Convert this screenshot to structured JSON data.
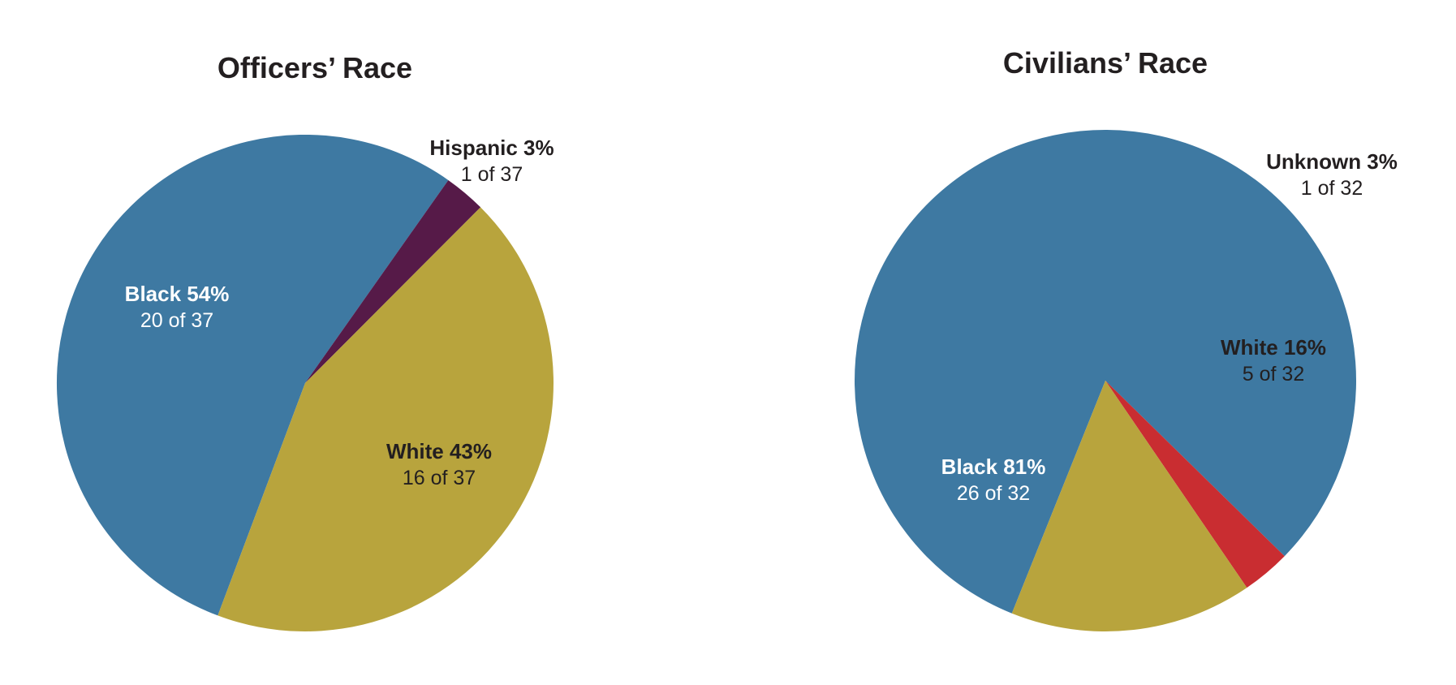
{
  "chart_data": [
    {
      "type": "pie",
      "title": "Officers’ Race",
      "slices": [
        {
          "label": "Black",
          "pct_label": "Black 54%",
          "count_label": "20 of 37",
          "value": 20,
          "color": "#3e79a2",
          "label_color": "#ffffff",
          "label_placement": "inside"
        },
        {
          "label": "Hispanic",
          "pct_label": "Hispanic 3%",
          "count_label": "1 of 37",
          "value": 1,
          "color": "#561a48",
          "label_color": "#231f20",
          "label_placement": "outside"
        },
        {
          "label": "White",
          "pct_label": "White 43%",
          "count_label": "16 of 37",
          "value": 16,
          "color": "#b8a43d",
          "label_color": "#231f20",
          "label_placement": "inside"
        }
      ]
    },
    {
      "type": "pie",
      "title": "Civilians’ Race",
      "slices": [
        {
          "label": "Black",
          "pct_label": "Black 81%",
          "count_label": "26 of 32",
          "value": 26,
          "color": "#3e79a2",
          "label_color": "#ffffff",
          "label_placement": "inside"
        },
        {
          "label": "Unknown",
          "pct_label": "Unknown 3%",
          "count_label": "1 of 32",
          "value": 1,
          "color": "#c92d31",
          "label_color": "#231f20",
          "label_placement": "outside"
        },
        {
          "label": "White",
          "pct_label": "White 16%",
          "count_label": "5 of 32",
          "value": 5,
          "color": "#b8a43d",
          "label_color": "#231f20",
          "label_placement": "inside"
        }
      ]
    }
  ]
}
